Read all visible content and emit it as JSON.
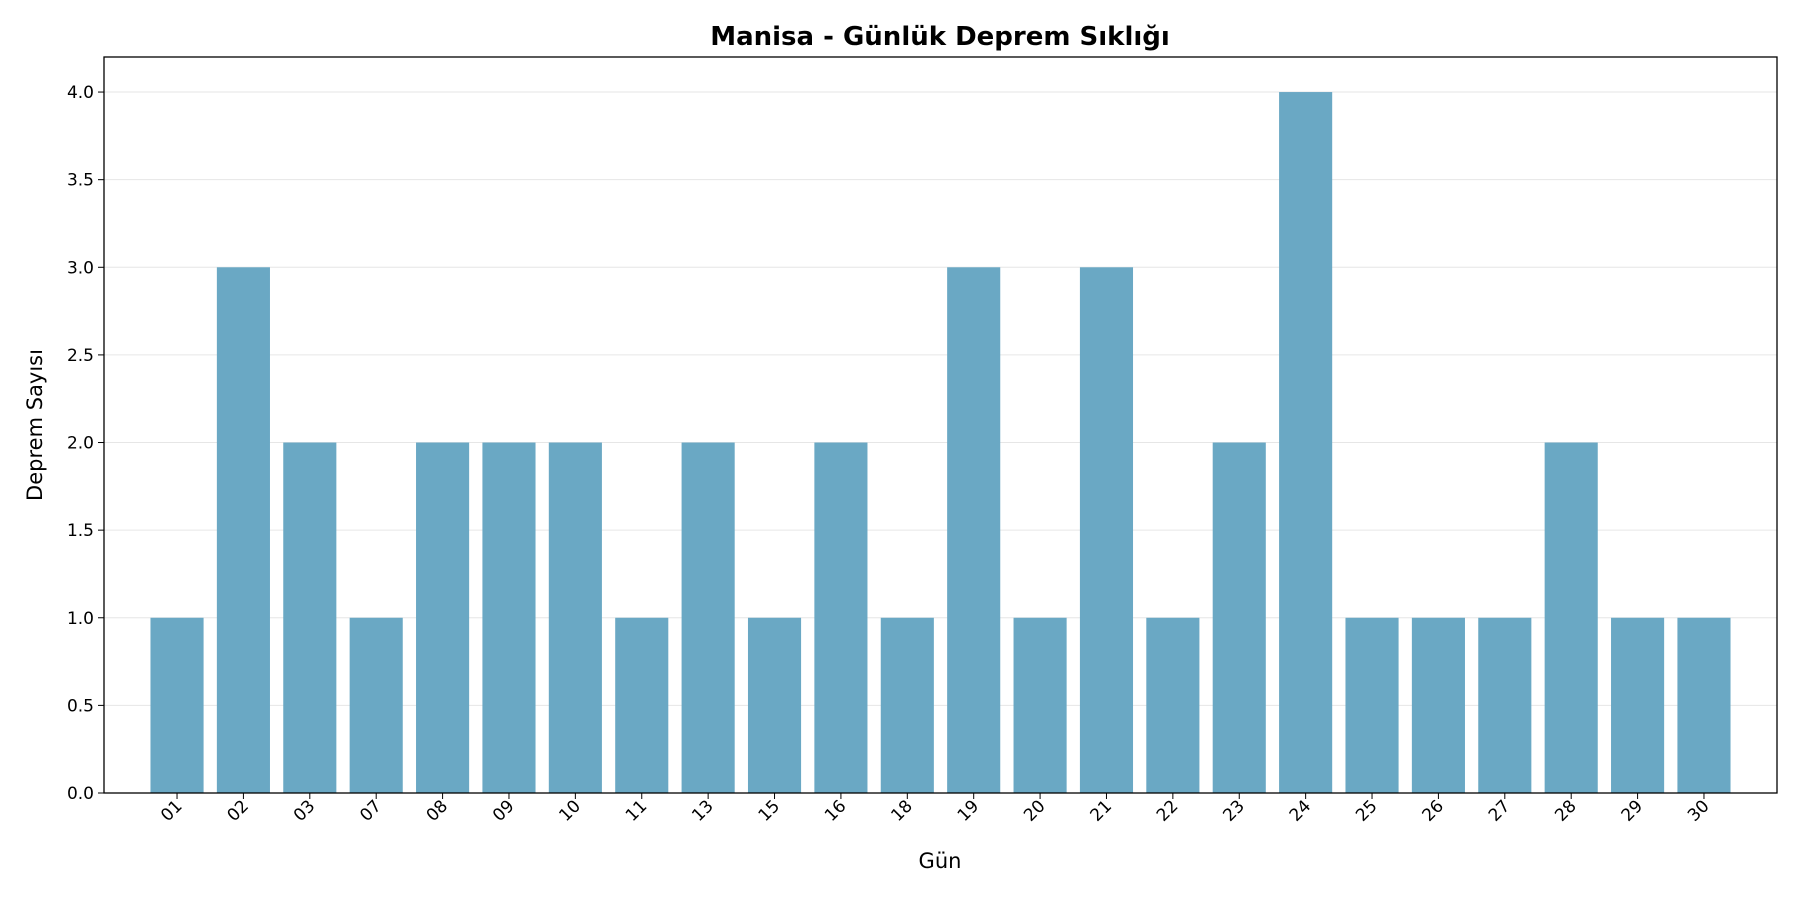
{
  "chart_data": {
    "type": "bar",
    "title": "Manisa - Günlük Deprem Sıklığı",
    "xlabel": "Gün",
    "ylabel": "Deprem Sayısı",
    "categories": [
      "01",
      "02",
      "03",
      "07",
      "08",
      "09",
      "10",
      "11",
      "13",
      "15",
      "16",
      "18",
      "19",
      "20",
      "21",
      "22",
      "23",
      "24",
      "25",
      "26",
      "27",
      "28",
      "29",
      "30"
    ],
    "values": [
      1,
      3,
      2,
      1,
      2,
      2,
      2,
      1,
      2,
      1,
      2,
      1,
      3,
      1,
      3,
      1,
      2,
      4,
      1,
      1,
      1,
      2,
      1,
      1
    ],
    "color": "#6aa8c4",
    "ylim": [
      0,
      4.2
    ],
    "yticks": [
      {
        "value": 0,
        "label": "0.0"
      },
      {
        "value": 0.5,
        "label": "0.5"
      },
      {
        "value": 1,
        "label": "1.0"
      },
      {
        "value": 1.5,
        "label": "1.5"
      },
      {
        "value": 2,
        "label": "2.0"
      },
      {
        "value": 2.5,
        "label": "2.5"
      },
      {
        "value": 3,
        "label": "3.0"
      },
      {
        "value": 3.5,
        "label": "3.5"
      },
      {
        "value": 4,
        "label": "4.0"
      }
    ],
    "grid": true
  }
}
